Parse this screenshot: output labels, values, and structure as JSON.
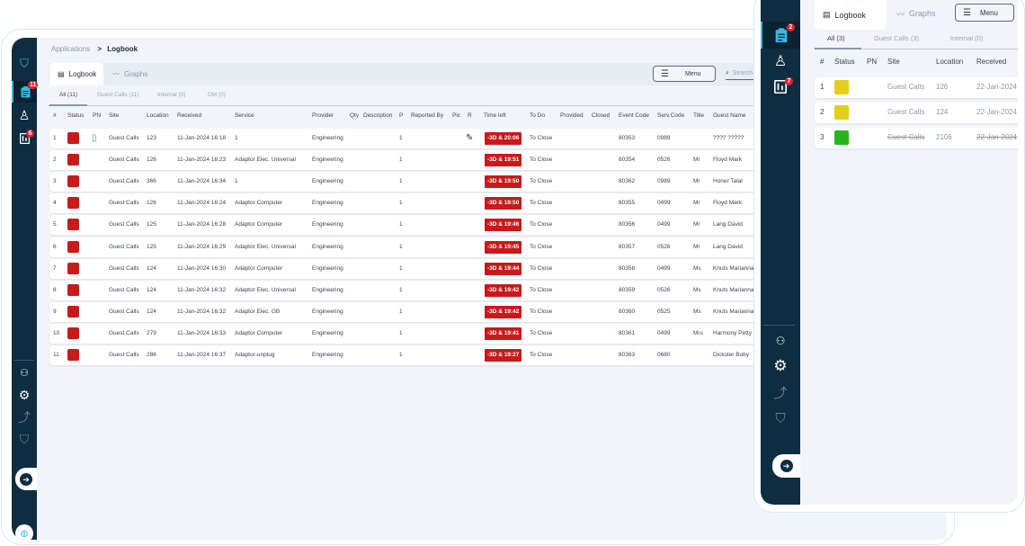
{
  "colors": {
    "sidebar": "#0f2d40",
    "overdue": "#c8191b",
    "status_red": "#c8191b",
    "status_yellow": "#e3cf1a",
    "status_green": "#27b51a",
    "badge": "#e0222a"
  },
  "main": {
    "breadcrumb": {
      "parent": "Applications",
      "separator": ">",
      "current": "Logbook"
    },
    "tabs": [
      {
        "label": "Logbook",
        "icon": "logbook-icon"
      },
      {
        "label": "Graphs",
        "icon": "graph-icon"
      }
    ],
    "menu_label": "Menu",
    "search_placeholder": "Search",
    "sidebar": {
      "badges": {
        "logbook": "11",
        "reports": "6"
      }
    },
    "subtabs": [
      "All (11)",
      "Guest Calls (11)",
      "Internal (0)",
      "DM (0)"
    ],
    "columns": [
      "#",
      "Status",
      "PN",
      "Site",
      "Location",
      "Received",
      "Service",
      "Provider",
      "Qty",
      "Description",
      "P",
      "Reported By",
      "Pic",
      "R",
      "Time left",
      "To Do",
      "Provided",
      "Closed",
      "Event Code",
      "Serv.Code",
      "Title",
      "Guest Name"
    ],
    "rows": [
      {
        "n": "1",
        "status": "red",
        "pn": true,
        "site": "Guest Calls",
        "location": "123",
        "received": "11-Jan-2024 16:18",
        "service": "1",
        "provider": "Engineering",
        "p": "1",
        "r": true,
        "time_left": "-3D & 20:06",
        "todo": "To Close",
        "event_code": "80353",
        "serv_code": "0989",
        "title": "",
        "guest": "???? ?????"
      },
      {
        "n": "2",
        "status": "red",
        "site": "Guest Calls",
        "location": "126",
        "received": "11-Jan-2024 16:23",
        "service": "Adaptor Elec. Universal",
        "provider": "Engineering",
        "p": "1",
        "time_left": "-3D & 19:51",
        "todo": "To Close",
        "event_code": "80354",
        "serv_code": "0526",
        "title": "Mr",
        "guest": "Floyd Mark"
      },
      {
        "n": "3",
        "status": "red",
        "site": "Guest Calls",
        "location": "366",
        "received": "11-Jan-2024 16:34",
        "service": "1",
        "provider": "Engineering",
        "p": "1",
        "time_left": "-3D & 19:50",
        "todo": "To Close",
        "event_code": "80362",
        "serv_code": "0989",
        "title": "Mr",
        "guest": "Honer Talal"
      },
      {
        "n": "4",
        "status": "red",
        "site": "Guest Calls",
        "location": "126",
        "received": "11-Jan-2024 16:24",
        "service": "Adaptor Computer",
        "provider": "Engineering",
        "p": "1",
        "time_left": "-3D & 19:50",
        "todo": "To Close",
        "event_code": "80355",
        "serv_code": "0499",
        "title": "Mr",
        "guest": "Floyd Mark"
      },
      {
        "n": "5",
        "status": "red",
        "site": "Guest Calls",
        "location": "125",
        "received": "11-Jan-2024 16:28",
        "service": "Adaptor Computer",
        "provider": "Engineering",
        "p": "1",
        "time_left": "-3D & 19:46",
        "todo": "To Close",
        "event_code": "80356",
        "serv_code": "0499",
        "title": "Mr",
        "guest": "Lang David"
      },
      {
        "n": "6",
        "status": "red",
        "site": "Guest Calls",
        "location": "125",
        "received": "11-Jan-2024 16:29",
        "service": "Adaptor Elec. Universal",
        "provider": "Engineering",
        "p": "1",
        "time_left": "-3D & 19:45",
        "todo": "To Close",
        "event_code": "80357",
        "serv_code": "0526",
        "title": "Mr",
        "guest": "Lang David"
      },
      {
        "n": "7",
        "status": "red",
        "site": "Guest Calls",
        "location": "124",
        "received": "11-Jan-2024 16:30",
        "service": "Adaptor Computer",
        "provider": "Engineering",
        "p": "1",
        "time_left": "-3D & 19:44",
        "todo": "To Close",
        "event_code": "80358",
        "serv_code": "0499",
        "title": "Ms",
        "guest": "Knuts Marianna"
      },
      {
        "n": "8",
        "status": "red",
        "site": "Guest Calls",
        "location": "124",
        "received": "11-Jan-2024 16:32",
        "service": "Adaptor Elec. Universal",
        "provider": "Engineering",
        "p": "1",
        "time_left": "-3D & 19:42",
        "todo": "To Close",
        "event_code": "80359",
        "serv_code": "0526",
        "title": "Ms",
        "guest": "Knuts Marianna"
      },
      {
        "n": "9",
        "status": "red",
        "site": "Guest Calls",
        "location": "124",
        "received": "11-Jan-2024 16:32",
        "service": "Adaptor Elec. GB",
        "provider": "Engineering",
        "p": "1",
        "time_left": "-3D & 19:42",
        "todo": "To Close",
        "event_code": "80360",
        "serv_code": "0525",
        "title": "Ms",
        "guest": "Knuts Marianna"
      },
      {
        "n": "10",
        "status": "red",
        "site": "Guest Calls",
        "location": "279",
        "received": "11-Jan-2024 16:33",
        "service": "Adaptor Computer",
        "provider": "Engineering",
        "p": "1",
        "time_left": "-3D & 19:41",
        "todo": "To Close",
        "event_code": "80361",
        "serv_code": "0499",
        "title": "Mrs",
        "guest": "Harmony Petty"
      },
      {
        "n": "11",
        "status": "red",
        "site": "Guest Calls",
        "location": "286",
        "received": "11-Jan-2024 16:37",
        "service": "Adaptor-unplug",
        "provider": "Engineering",
        "p": "1",
        "time_left": "-3D & 19:27",
        "todo": "To Close",
        "event_code": "80363",
        "serv_code": "0680",
        "title": "",
        "guest": "Dickster Boby"
      }
    ]
  },
  "side": {
    "tabs": [
      {
        "label": "Logbook"
      },
      {
        "label": "Graphs"
      }
    ],
    "menu_label": "Menu",
    "sidebar": {
      "badges": {
        "logbook": "2",
        "reports": "7"
      }
    },
    "subtabs": [
      "All (3)",
      "Guest Calls (3)",
      "Internal (0)"
    ],
    "columns": [
      "#",
      "Status",
      "PN",
      "Site",
      "Location",
      "Received"
    ],
    "rows": [
      {
        "n": "1",
        "status": "yellow",
        "site": "Guest Calls",
        "location": "126",
        "received": "22-Jan-2024",
        "strike": false
      },
      {
        "n": "2",
        "status": "yellow",
        "site": "Guest Calls",
        "location": "124",
        "received": "22-Jan-2024",
        "strike": false
      },
      {
        "n": "3",
        "status": "green",
        "site": "Guest Calls",
        "location": "2106",
        "received": "22-Jan-2024",
        "strike": true
      }
    ]
  }
}
